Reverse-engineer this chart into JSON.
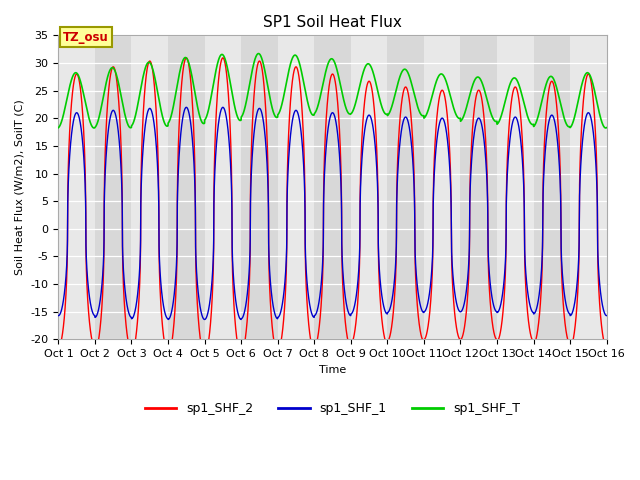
{
  "title": "SP1 Soil Heat Flux",
  "xlabel": "Time",
  "ylabel": "Soil Heat Flux (W/m2), SoilT (C)",
  "ylim": [
    -20,
    35
  ],
  "xlim": [
    0,
    15
  ],
  "xtick_labels": [
    "Oct 1",
    "Oct 2",
    "Oct 3",
    "Oct 4",
    "Oct 5",
    "Oct 6",
    "Oct 7",
    "Oct 8",
    "Oct 9",
    "Oct 10",
    "Oct 11",
    "Oct 12",
    "Oct 13",
    "Oct 14",
    "Oct 15",
    "Oct 16"
  ],
  "bg_color": "#ffffff",
  "band_even_color": "#e8e8e8",
  "band_odd_color": "#d0d0d0",
  "grid_color": "#ffffff",
  "shf2_color": "#ff0000",
  "shf1_color": "#0000cc",
  "shft_color": "#00cc00",
  "tz_box_facecolor": "#ffff99",
  "tz_box_edgecolor": "#999900",
  "tz_text_color": "#cc0000",
  "legend_labels": [
    "sp1_SHF_2",
    "sp1_SHF_1",
    "sp1_SHF_T"
  ],
  "n_days": 15,
  "title_fontsize": 11,
  "label_fontsize": 8,
  "tick_fontsize": 8
}
